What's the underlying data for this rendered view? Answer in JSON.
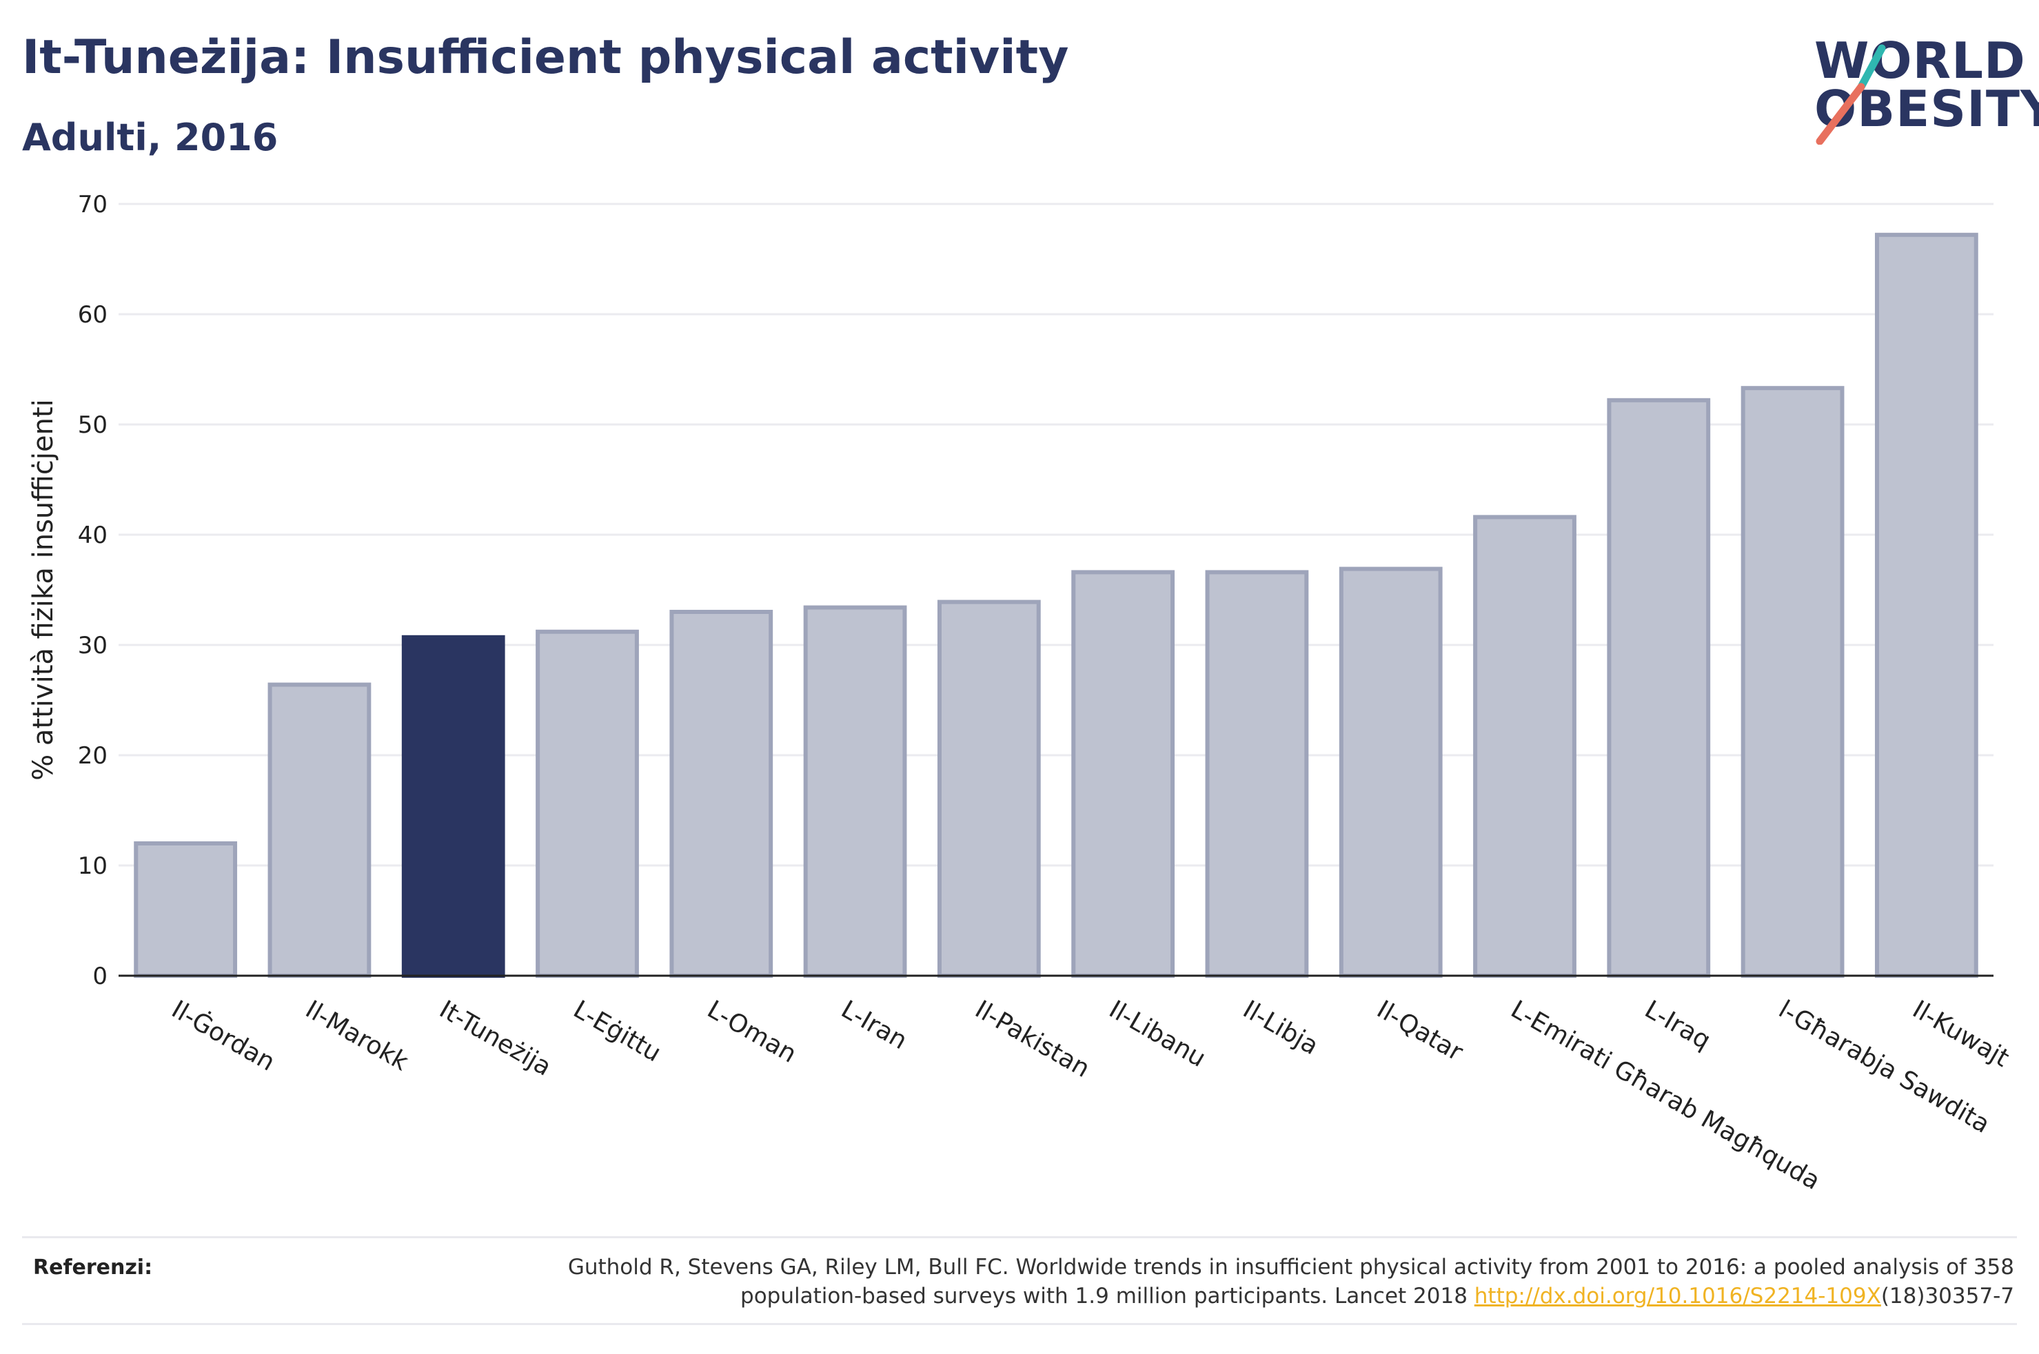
{
  "title": "It-Tuneżija: Insufficient physical activity",
  "subtitle": "Adulti, 2016",
  "logo": {
    "line1": "WORLD",
    "line2": "OBESITY",
    "accent_teal": "#2fb7b0",
    "accent_coral": "#e8705e"
  },
  "references": {
    "label": "Referenzi:",
    "text_line1": "Guthold R, Stevens GA, Riley LM, Bull FC. Worldwide trends in insufficient physical activity from 2001 to 2016: a pooled analysis of 358",
    "text_line2_prefix": "population-based surveys with 1.9 million participants. Lancet 2018 ",
    "link_text": "http://dx.doi.org/10.1016/S2214-109X",
    "text_line2_suffix": "(18)30357-7"
  },
  "chart_data": {
    "type": "bar",
    "title": "It-Tuneżija: Insufficient physical activity",
    "subtitle": "Adulti, 2016",
    "ylabel": "% attività fiżika insuffiċjenti",
    "xlabel": "",
    "ylim": [
      0,
      70
    ],
    "yticks": [
      0,
      10,
      20,
      30,
      40,
      50,
      60,
      70
    ],
    "grid": true,
    "categories": [
      "Il-Ġordan",
      "Il-Marokk",
      "It-Tuneżija",
      "L-Eġittu",
      "L-Oman",
      "L-Iran",
      "Il-Pakistan",
      "Il-Libanu",
      "Il-Libja",
      "Il-Qatar",
      "L-Emirati Għarab Magħquda",
      "L-Iraq",
      "l-Għarabja Sawdita",
      "Il-Kuwajt"
    ],
    "values": [
      12.0,
      26.4,
      30.7,
      31.2,
      33.0,
      33.4,
      33.9,
      36.6,
      36.6,
      36.9,
      41.6,
      52.2,
      53.3,
      67.2
    ],
    "highlight_index": 2,
    "colors": {
      "bar": "#bec2d0",
      "bar_border": "#9ea4ba",
      "highlight": "#2a3561",
      "grid": "#ebebef",
      "axis": "#222222"
    }
  }
}
